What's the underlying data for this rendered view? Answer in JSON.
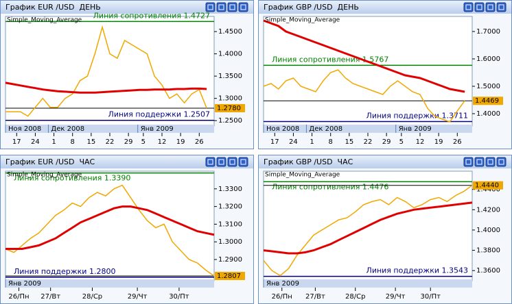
{
  "chart_data": [
    {
      "type": "line",
      "title": "График EUR /USD  ДЕНЬ",
      "x": [
        0,
        2,
        4,
        6,
        8,
        10,
        12,
        14,
        16,
        18,
        20,
        22,
        24,
        26,
        28,
        30,
        32,
        34,
        36,
        38,
        40,
        42,
        44,
        46,
        48,
        50,
        52,
        54
      ],
      "xlim": [
        0,
        56
      ],
      "xticks": [
        {
          "value": 3,
          "label": "17"
        },
        {
          "value": 8,
          "label": "24"
        },
        {
          "value": 13,
          "label": "1"
        },
        {
          "value": 18,
          "label": "8"
        },
        {
          "value": 23,
          "label": "15"
        },
        {
          "value": 28,
          "label": "22"
        },
        {
          "value": 33,
          "label": "29"
        },
        {
          "value": 37,
          "label": "5"
        },
        {
          "value": 42,
          "label": "12"
        },
        {
          "value": 47,
          "label": "19"
        },
        {
          "value": 52,
          "label": "26"
        }
      ],
      "month_ticks": [
        {
          "value": 0,
          "label": "Ноя 2008"
        },
        {
          "value": 11.5,
          "label": "Дек 2008"
        },
        {
          "value": 35.5,
          "label": "Янв 2009"
        }
      ],
      "ylim": [
        1.238,
        1.484
      ],
      "yticks": [
        {
          "value": 1.25,
          "label": "1.2500"
        },
        {
          "value": 1.3,
          "label": "1.3000"
        },
        {
          "value": 1.35,
          "label": "1.3500"
        },
        {
          "value": 1.4,
          "label": "1.4000"
        },
        {
          "value": 1.45,
          "label": "1.4500"
        }
      ],
      "series": [
        {
          "color": "#f0a800",
          "values": [
            1.27,
            1.27,
            1.27,
            1.26,
            1.28,
            1.3,
            1.28,
            1.28,
            1.3,
            1.31,
            1.34,
            1.35,
            1.4,
            1.46,
            1.4,
            1.39,
            1.43,
            1.42,
            1.41,
            1.4,
            1.35,
            1.33,
            1.3,
            1.31,
            1.29,
            1.31,
            1.32,
            1.278
          ]
        },
        {
          "name": "Simple_Moving_Average",
          "color": "#e00000",
          "values": [
            1.335,
            1.332,
            1.329,
            1.326,
            1.323,
            1.32,
            1.318,
            1.316,
            1.315,
            1.314,
            1.313,
            1.313,
            1.313,
            1.314,
            1.315,
            1.316,
            1.317,
            1.318,
            1.319,
            1.319,
            1.32,
            1.32,
            1.32,
            1.321,
            1.321,
            1.322,
            1.322,
            1.321
          ]
        }
      ],
      "hlines": [
        {
          "label": "Линия сопротивления 1.4727",
          "value": 1.4727,
          "color": "#008000"
        },
        {
          "label": "Линия поддержки 1.2507",
          "value": 1.2507,
          "color": "#000080"
        }
      ],
      "last_price": {
        "value": 1.278,
        "label": "1.2780"
      }
    },
    {
      "type": "line",
      "title": "График GBP /USD  ДЕНЬ",
      "x": [
        0,
        2,
        4,
        6,
        8,
        10,
        12,
        14,
        16,
        18,
        20,
        22,
        24,
        26,
        28,
        30,
        32,
        34,
        36,
        38,
        40,
        42,
        44,
        46,
        48,
        50,
        52,
        54
      ],
      "xlim": [
        0,
        56
      ],
      "xticks": [
        {
          "value": 3,
          "label": "17"
        },
        {
          "value": 8,
          "label": "24"
        },
        {
          "value": 13,
          "label": "1"
        },
        {
          "value": 18,
          "label": "8"
        },
        {
          "value": 23,
          "label": "15"
        },
        {
          "value": 28,
          "label": "22"
        },
        {
          "value": 33,
          "label": "29"
        },
        {
          "value": 37,
          "label": "5"
        },
        {
          "value": 42,
          "label": "12"
        },
        {
          "value": 47,
          "label": "19"
        },
        {
          "value": 52,
          "label": "26"
        }
      ],
      "month_ticks": [
        {
          "value": 0,
          "label": "Ноя 2008"
        },
        {
          "value": 11.5,
          "label": "Дек 2008"
        },
        {
          "value": 35.5,
          "label": "Янв 2009"
        }
      ],
      "ylim": [
        1.355,
        1.755
      ],
      "yticks": [
        {
          "value": 1.4,
          "label": "1.4000"
        },
        {
          "value": 1.5,
          "label": "1.5000"
        },
        {
          "value": 1.6,
          "label": "1.6000"
        },
        {
          "value": 1.7,
          "label": "1.7000"
        }
      ],
      "series": [
        {
          "color": "#f0a800",
          "values": [
            1.5,
            1.51,
            1.49,
            1.52,
            1.53,
            1.5,
            1.49,
            1.48,
            1.52,
            1.55,
            1.56,
            1.53,
            1.51,
            1.5,
            1.49,
            1.48,
            1.47,
            1.5,
            1.52,
            1.5,
            1.48,
            1.47,
            1.42,
            1.39,
            1.38,
            1.37,
            1.41,
            1.4469
          ]
        },
        {
          "name": "Simple_Moving_Average",
          "color": "#e00000",
          "values": [
            1.74,
            1.73,
            1.72,
            1.7,
            1.69,
            1.68,
            1.67,
            1.66,
            1.65,
            1.64,
            1.63,
            1.62,
            1.61,
            1.6,
            1.59,
            1.58,
            1.57,
            1.56,
            1.55,
            1.54,
            1.535,
            1.53,
            1.52,
            1.51,
            1.5,
            1.49,
            1.485,
            1.48
          ]
        }
      ],
      "hlines": [
        {
          "label": "Линия сопротивления 1.5767",
          "value": 1.5767,
          "color": "#008000"
        },
        {
          "label": "Линия поддержки 1.3711",
          "value": 1.3711,
          "color": "#000080"
        }
      ],
      "last_price": {
        "value": 1.4469,
        "label": "1.4469"
      }
    },
    {
      "type": "line",
      "title": "График EUR /USD  ЧАС",
      "x": [
        0,
        5,
        10,
        15,
        20,
        25,
        30,
        35,
        40,
        45,
        50,
        55,
        60,
        65,
        70,
        75,
        80,
        85,
        90,
        95,
        100,
        105,
        110,
        115,
        120,
        125
      ],
      "xlim": [
        0,
        125
      ],
      "xticks": [
        {
          "value": 8,
          "label": "26/Пн"
        },
        {
          "value": 27,
          "label": "27/Вт"
        },
        {
          "value": 52,
          "label": "28/Ср"
        },
        {
          "value": 79,
          "label": "29/Чт"
        },
        {
          "value": 104,
          "label": "30/Пт"
        }
      ],
      "month_ticks": [
        {
          "value": 0,
          "label": "Янв 2009"
        }
      ],
      "ylim": [
        1.278,
        1.34
      ],
      "yticks": [
        {
          "value": 1.29,
          "label": "1.2900"
        },
        {
          "value": 1.3,
          "label": "1.3000"
        },
        {
          "value": 1.31,
          "label": "1.3100"
        },
        {
          "value": 1.32,
          "label": "1.3200"
        },
        {
          "value": 1.33,
          "label": "1.3300"
        }
      ],
      "series": [
        {
          "color": "#f0a800",
          "values": [
            1.296,
            1.294,
            1.298,
            1.302,
            1.305,
            1.31,
            1.315,
            1.318,
            1.322,
            1.32,
            1.325,
            1.328,
            1.326,
            1.33,
            1.332,
            1.325,
            1.318,
            1.312,
            1.308,
            1.31,
            1.3,
            1.295,
            1.29,
            1.288,
            1.284,
            1.2807
          ]
        },
        {
          "name": "Simple_Moving_Average",
          "color": "#e00000",
          "values": [
            1.296,
            1.296,
            1.296,
            1.297,
            1.298,
            1.3,
            1.302,
            1.305,
            1.308,
            1.311,
            1.313,
            1.315,
            1.317,
            1.319,
            1.32,
            1.32,
            1.319,
            1.318,
            1.316,
            1.314,
            1.312,
            1.31,
            1.308,
            1.306,
            1.305,
            1.304
          ]
        }
      ],
      "hlines": [
        {
          "label": "Линия сопротивления 1.3390",
          "value": 1.339,
          "color": "#008000"
        },
        {
          "label": "Линия поддержки 1.2800",
          "value": 1.28,
          "color": "#000080"
        }
      ],
      "last_price": {
        "value": 1.2807,
        "label": "1.2807"
      }
    },
    {
      "type": "line",
      "title": "График GBP /USD  ЧАС",
      "x": [
        0,
        5,
        10,
        15,
        20,
        25,
        30,
        35,
        40,
        45,
        50,
        55,
        60,
        65,
        70,
        75,
        80,
        85,
        90,
        95,
        100,
        105,
        110,
        115,
        120,
        125
      ],
      "xlim": [
        0,
        125
      ],
      "xticks": [
        {
          "value": 11,
          "label": "26/Пн"
        },
        {
          "value": 31,
          "label": "27/Вт"
        },
        {
          "value": 55,
          "label": "28/Ср"
        },
        {
          "value": 79,
          "label": "29/Чт"
        },
        {
          "value": 100,
          "label": "30/Пт"
        }
      ],
      "month_ticks": [
        {
          "value": 0,
          "label": "Янв 2009"
        }
      ],
      "ylim": [
        1.35,
        1.458
      ],
      "yticks": [
        {
          "value": 1.36,
          "label": "1.3600"
        },
        {
          "value": 1.38,
          "label": "1.3800"
        },
        {
          "value": 1.4,
          "label": "1.4000"
        },
        {
          "value": 1.42,
          "label": "1.4200"
        },
        {
          "value": 1.44,
          "label": "1.4400"
        }
      ],
      "series": [
        {
          "color": "#f0a800",
          "values": [
            1.37,
            1.36,
            1.355,
            1.362,
            1.375,
            1.385,
            1.395,
            1.4,
            1.405,
            1.41,
            1.412,
            1.418,
            1.425,
            1.428,
            1.43,
            1.425,
            1.432,
            1.428,
            1.422,
            1.425,
            1.43,
            1.432,
            1.428,
            1.434,
            1.438,
            1.444
          ]
        },
        {
          "name": "Simple_Moving_Average",
          "color": "#e00000",
          "values": [
            1.38,
            1.379,
            1.378,
            1.377,
            1.377,
            1.378,
            1.38,
            1.383,
            1.386,
            1.39,
            1.394,
            1.398,
            1.402,
            1.406,
            1.41,
            1.413,
            1.416,
            1.418,
            1.42,
            1.421,
            1.422,
            1.423,
            1.424,
            1.425,
            1.426,
            1.427
          ]
        }
      ],
      "hlines": [
        {
          "label": "Линия сопротивления 1.4476",
          "value": 1.4476,
          "color": "#008000"
        },
        {
          "label": "Линия поддержки 1.3543",
          "value": 1.3543,
          "color": "#000080"
        }
      ],
      "last_price": {
        "value": 1.444,
        "label": "1.4440"
      }
    }
  ]
}
